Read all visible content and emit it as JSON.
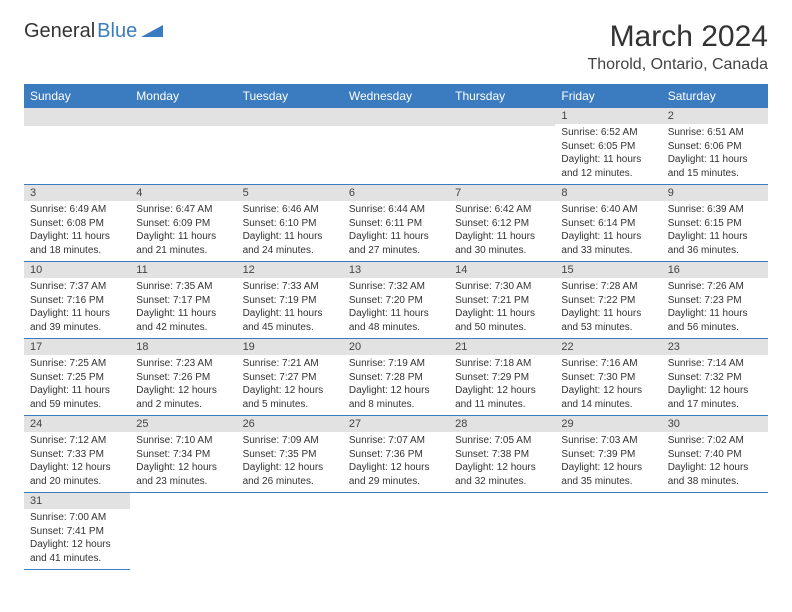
{
  "logo": {
    "part1": "General",
    "part2": "Blue"
  },
  "title": "March 2024",
  "location": "Thorold, Ontario, Canada",
  "colors": {
    "header_bg": "#3b7bbf",
    "header_fg": "#ffffff",
    "daynum_bg": "#e2e2e2",
    "text": "#333333",
    "row_divider": "#3b7bbf"
  },
  "weekdays": [
    "Sunday",
    "Monday",
    "Tuesday",
    "Wednesday",
    "Thursday",
    "Friday",
    "Saturday"
  ],
  "days": [
    {
      "n": 1,
      "sr": "6:52 AM",
      "ss": "6:05 PM",
      "dl": "11 hours and 12 minutes."
    },
    {
      "n": 2,
      "sr": "6:51 AM",
      "ss": "6:06 PM",
      "dl": "11 hours and 15 minutes."
    },
    {
      "n": 3,
      "sr": "6:49 AM",
      "ss": "6:08 PM",
      "dl": "11 hours and 18 minutes."
    },
    {
      "n": 4,
      "sr": "6:47 AM",
      "ss": "6:09 PM",
      "dl": "11 hours and 21 minutes."
    },
    {
      "n": 5,
      "sr": "6:46 AM",
      "ss": "6:10 PM",
      "dl": "11 hours and 24 minutes."
    },
    {
      "n": 6,
      "sr": "6:44 AM",
      "ss": "6:11 PM",
      "dl": "11 hours and 27 minutes."
    },
    {
      "n": 7,
      "sr": "6:42 AM",
      "ss": "6:12 PM",
      "dl": "11 hours and 30 minutes."
    },
    {
      "n": 8,
      "sr": "6:40 AM",
      "ss": "6:14 PM",
      "dl": "11 hours and 33 minutes."
    },
    {
      "n": 9,
      "sr": "6:39 AM",
      "ss": "6:15 PM",
      "dl": "11 hours and 36 minutes."
    },
    {
      "n": 10,
      "sr": "7:37 AM",
      "ss": "7:16 PM",
      "dl": "11 hours and 39 minutes."
    },
    {
      "n": 11,
      "sr": "7:35 AM",
      "ss": "7:17 PM",
      "dl": "11 hours and 42 minutes."
    },
    {
      "n": 12,
      "sr": "7:33 AM",
      "ss": "7:19 PM",
      "dl": "11 hours and 45 minutes."
    },
    {
      "n": 13,
      "sr": "7:32 AM",
      "ss": "7:20 PM",
      "dl": "11 hours and 48 minutes."
    },
    {
      "n": 14,
      "sr": "7:30 AM",
      "ss": "7:21 PM",
      "dl": "11 hours and 50 minutes."
    },
    {
      "n": 15,
      "sr": "7:28 AM",
      "ss": "7:22 PM",
      "dl": "11 hours and 53 minutes."
    },
    {
      "n": 16,
      "sr": "7:26 AM",
      "ss": "7:23 PM",
      "dl": "11 hours and 56 minutes."
    },
    {
      "n": 17,
      "sr": "7:25 AM",
      "ss": "7:25 PM",
      "dl": "11 hours and 59 minutes."
    },
    {
      "n": 18,
      "sr": "7:23 AM",
      "ss": "7:26 PM",
      "dl": "12 hours and 2 minutes."
    },
    {
      "n": 19,
      "sr": "7:21 AM",
      "ss": "7:27 PM",
      "dl": "12 hours and 5 minutes."
    },
    {
      "n": 20,
      "sr": "7:19 AM",
      "ss": "7:28 PM",
      "dl": "12 hours and 8 minutes."
    },
    {
      "n": 21,
      "sr": "7:18 AM",
      "ss": "7:29 PM",
      "dl": "12 hours and 11 minutes."
    },
    {
      "n": 22,
      "sr": "7:16 AM",
      "ss": "7:30 PM",
      "dl": "12 hours and 14 minutes."
    },
    {
      "n": 23,
      "sr": "7:14 AM",
      "ss": "7:32 PM",
      "dl": "12 hours and 17 minutes."
    },
    {
      "n": 24,
      "sr": "7:12 AM",
      "ss": "7:33 PM",
      "dl": "12 hours and 20 minutes."
    },
    {
      "n": 25,
      "sr": "7:10 AM",
      "ss": "7:34 PM",
      "dl": "12 hours and 23 minutes."
    },
    {
      "n": 26,
      "sr": "7:09 AM",
      "ss": "7:35 PM",
      "dl": "12 hours and 26 minutes."
    },
    {
      "n": 27,
      "sr": "7:07 AM",
      "ss": "7:36 PM",
      "dl": "12 hours and 29 minutes."
    },
    {
      "n": 28,
      "sr": "7:05 AM",
      "ss": "7:38 PM",
      "dl": "12 hours and 32 minutes."
    },
    {
      "n": 29,
      "sr": "7:03 AM",
      "ss": "7:39 PM",
      "dl": "12 hours and 35 minutes."
    },
    {
      "n": 30,
      "sr": "7:02 AM",
      "ss": "7:40 PM",
      "dl": "12 hours and 38 minutes."
    },
    {
      "n": 31,
      "sr": "7:00 AM",
      "ss": "7:41 PM",
      "dl": "12 hours and 41 minutes."
    }
  ],
  "first_weekday_index": 5,
  "labels": {
    "sunrise": "Sunrise:",
    "sunset": "Sunset:",
    "daylight": "Daylight:"
  }
}
